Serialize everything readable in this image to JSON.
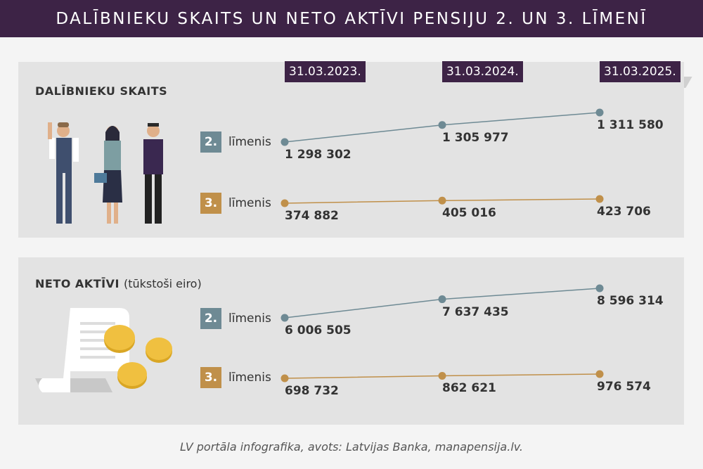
{
  "header": {
    "title": "DALĪBNIEKU SKAITS UN NETO AKTĪVI PENSIJU 2. UN 3. LĪMENĪ"
  },
  "dates": [
    "31.03.2023.",
    "31.03.2024.",
    "31.03.2025."
  ],
  "colors": {
    "header": "#3d2346",
    "level2": "#6e8a94",
    "level3": "#c0904a"
  },
  "panels": {
    "participants": {
      "title": "DALĪBNIEKU SKAITS"
    },
    "assets": {
      "title": "NETO AKTĪVI",
      "subtitle": "(tūkstoši eiro)"
    }
  },
  "levels": {
    "l2_number": "2.",
    "l3_number": "3.",
    "word": "līmenis"
  },
  "chart_data": [
    {
      "type": "line",
      "title": "DALĪBNIEKU SKAITS",
      "categories": [
        "31.03.2023.",
        "31.03.2024.",
        "31.03.2025."
      ],
      "series": [
        {
          "name": "2. līmenis",
          "values": [
            1298302,
            1305977,
            1311580
          ],
          "labels": [
            "1 298 302",
            "1 305 977",
            "1 311 580"
          ]
        },
        {
          "name": "3. līmenis",
          "values": [
            374882,
            405016,
            423706
          ],
          "labels": [
            "374 882",
            "405 016",
            "423 706"
          ]
        }
      ]
    },
    {
      "type": "line",
      "title": "NETO AKTĪVI (tūkstoši eiro)",
      "categories": [
        "31.03.2023.",
        "31.03.2024.",
        "31.03.2025."
      ],
      "series": [
        {
          "name": "2. līmenis",
          "values": [
            6006505,
            7637435,
            8596314
          ],
          "labels": [
            "6 006 505",
            "7 637 435",
            "8 596 314"
          ]
        },
        {
          "name": "3. līmenis",
          "values": [
            698732,
            862621,
            976574
          ],
          "labels": [
            "698 732",
            "862 621",
            "976 574"
          ]
        }
      ]
    }
  ],
  "footer": {
    "source": "LV portāla infografika, avots: Latvijas Banka, manapensija.lv."
  }
}
